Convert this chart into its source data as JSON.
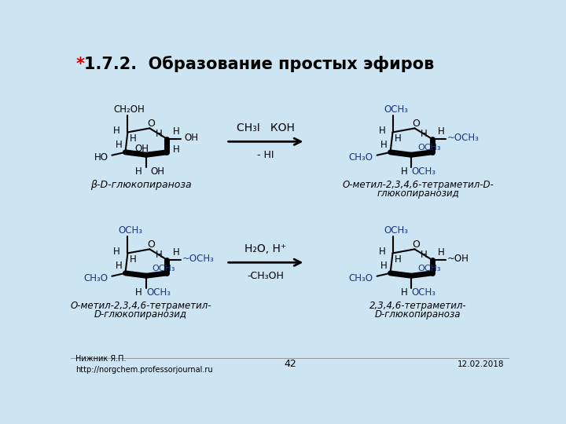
{
  "background_color": "#cde5f2",
  "title_star": "*",
  "title_text": "1.7.2.  Образование простых эфиров",
  "title_fontsize": 15,
  "title_star_color": "#cc0000",
  "title_color": "#000000",
  "reaction1_above": "CH₃I   КОН",
  "reaction1_below": "- HI",
  "reaction2_above": "H₂O, H⁺",
  "reaction2_below": "-CH₃OH",
  "label_tl": "β-D-глюкопираноза",
  "label_tr1": "О-метил-2,3,4,6-тетраметил-D-",
  "label_tr2": "глюкопиранозид",
  "label_bl1": "О-метил-2,3,4,6-тетраметил-",
  "label_bl2": "D-глюкопиранозид",
  "label_br1": "2,3,4,6-тетраметил-",
  "label_br2": "D-глюкопираноза",
  "footer_left": "Нижник Я.П.\nhttp://norgchem.professorjournal.ru",
  "footer_center": "42",
  "footer_right": "12.02.2018",
  "blue": "#1a3580",
  "black": "#000000",
  "red": "#cc0000"
}
